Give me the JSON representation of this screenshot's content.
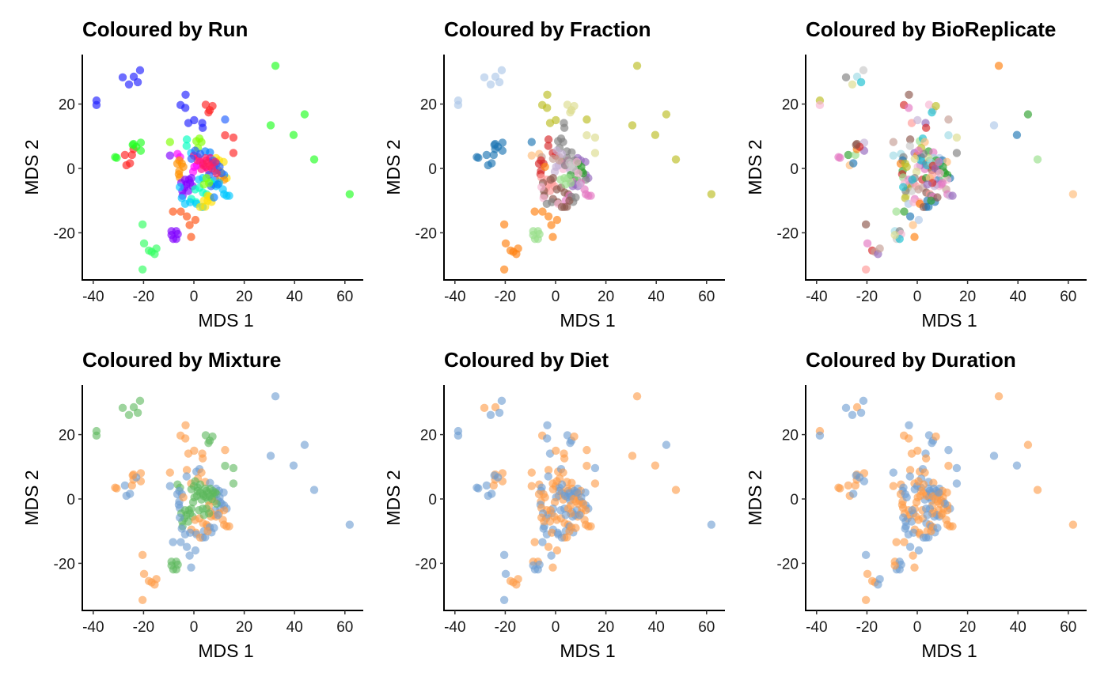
{
  "chart_data": [
    {
      "type": "scatter",
      "title": "Coloured by Run",
      "xlabel": "MDS 1",
      "ylabel": "MDS 2",
      "color_by": "run",
      "xlim": [
        -44,
        67
      ],
      "ylim": [
        -34.6,
        35.4
      ],
      "xticks": [
        "-40",
        "-20",
        "0",
        "20",
        "40",
        "60"
      ],
      "yticks": [
        "-20",
        "0",
        "20"
      ],
      "legend": "none",
      "grid": false
    },
    {
      "type": "scatter",
      "title": "Coloured by Fraction",
      "xlabel": "MDS 1",
      "ylabel": "MDS 2",
      "color_by": "fraction",
      "xlim": [
        -44,
        67
      ],
      "ylim": [
        -34.6,
        35.4
      ],
      "xticks": [
        "-40",
        "-20",
        "0",
        "20",
        "40",
        "60"
      ],
      "yticks": [
        "-20",
        "0",
        "20"
      ],
      "legend": "none",
      "grid": false
    },
    {
      "type": "scatter",
      "title": "Coloured by BioReplicate",
      "xlabel": "MDS 1",
      "ylabel": "MDS 2",
      "color_by": "bio",
      "xlim": [
        -44,
        67
      ],
      "ylim": [
        -34.6,
        35.4
      ],
      "xticks": [
        "-40",
        "-20",
        "0",
        "20",
        "40",
        "60"
      ],
      "yticks": [
        "-20",
        "0",
        "20"
      ],
      "legend": "none",
      "grid": false
    },
    {
      "type": "scatter",
      "title": "Coloured by Mixture",
      "xlabel": "MDS 1",
      "ylabel": "MDS 2",
      "color_by": "mix",
      "xlim": [
        -44,
        67
      ],
      "ylim": [
        -34.6,
        35.4
      ],
      "xticks": [
        "-40",
        "-20",
        "0",
        "20",
        "40",
        "60"
      ],
      "yticks": [
        "-20",
        "0",
        "20"
      ],
      "legend": "none",
      "grid": false
    },
    {
      "type": "scatter",
      "title": "Coloured by Diet",
      "xlabel": "MDS 1",
      "ylabel": "MDS 2",
      "color_by": "diet",
      "xlim": [
        -44,
        67
      ],
      "ylim": [
        -34.6,
        35.4
      ],
      "xticks": [
        "-40",
        "-20",
        "0",
        "20",
        "40",
        "60"
      ],
      "yticks": [
        "-20",
        "0",
        "20"
      ],
      "legend": "none",
      "grid": false
    },
    {
      "type": "scatter",
      "title": "Coloured by Duration",
      "xlabel": "MDS 1",
      "ylabel": "MDS 2",
      "color_by": "dur",
      "xlim": [
        -44,
        67
      ],
      "ylim": [
        -34.6,
        35.4
      ],
      "xticks": [
        "-40",
        "-20",
        "0",
        "20",
        "40",
        "60"
      ],
      "yticks": [
        "-20",
        "0",
        "20"
      ],
      "legend": "none",
      "grid": false
    }
  ],
  "palettes": {
    "run": [
      "#2020ff",
      "#ff2020",
      "#20ff20",
      "#ff0080",
      "#ff00ff",
      "#8000ff",
      "#0080ff",
      "#00c8ff",
      "#00ffc0",
      "#80ff00",
      "#ffe000",
      "#ff9000",
      "#ff5010",
      "#2060ff",
      "#ff2060",
      "#30ff60"
    ],
    "fraction": [
      "#aec7e8",
      "#1f77b4",
      "#bcbd22",
      "#dbdb8d",
      "#ff7f0e",
      "#ffbb78",
      "#2ca02c",
      "#98df8a",
      "#d62728",
      "#ff9896",
      "#9467bd",
      "#c5b0d5",
      "#8c564b",
      "#c49c94",
      "#e377c2",
      "#f7b6d2",
      "#7f7f7f",
      "#c7c7c7"
    ],
    "bio": [
      "#1f77b4",
      "#aec7e8",
      "#ff7f0e",
      "#ffbb78",
      "#2ca02c",
      "#98df8a",
      "#d62728",
      "#ff9896",
      "#9467bd",
      "#c5b0d5",
      "#8c564b",
      "#c49c94",
      "#e377c2",
      "#f7b6d2",
      "#7f7f7f",
      "#c7c7c7",
      "#bcbd22",
      "#dbdb8d",
      "#17becf",
      "#9edae5"
    ],
    "mix": [
      "#6a9bd1",
      "#fd9a45",
      "#5cb85c"
    ],
    "diet": [
      "#6a9bd1",
      "#fd9a45"
    ],
    "dur": [
      "#6a9bd1",
      "#fd9a45"
    ]
  },
  "points": [
    [
      -38.7,
      21.1,
      0,
      0,
      16,
      2,
      0,
      1
    ],
    [
      -38.7,
      19.7,
      0,
      0,
      13,
      2,
      0,
      0
    ],
    [
      -28.3,
      28.3,
      0,
      0,
      14,
      2,
      1,
      0
    ],
    [
      -25.8,
      26.1,
      0,
      0,
      17,
      2,
      0,
      0
    ],
    [
      -23.9,
      28.5,
      0,
      0,
      19,
      2,
      1,
      1
    ],
    [
      -22.3,
      26.8,
      0,
      0,
      18,
      2,
      0,
      0
    ],
    [
      -21.4,
      30.5,
      0,
      0,
      15,
      2,
      0,
      0
    ],
    [
      32.4,
      31.9,
      2,
      2,
      2,
      0,
      1,
      1
    ],
    [
      44.0,
      16.8,
      2,
      2,
      4,
      0,
      0,
      1
    ],
    [
      30.5,
      13.4,
      2,
      2,
      1,
      0,
      1,
      0
    ],
    [
      39.6,
      10.4,
      2,
      2,
      0,
      0,
      1,
      0
    ],
    [
      47.8,
      2.8,
      2,
      2,
      5,
      0,
      1,
      1
    ],
    [
      61.9,
      -8.0,
      2,
      2,
      3,
      0,
      0,
      1
    ],
    [
      -20.4,
      -17.4,
      15,
      4,
      10,
      1,
      0,
      0
    ],
    [
      -19.8,
      -23.3,
      15,
      4,
      12,
      1,
      0,
      1
    ],
    [
      -17.9,
      -25.5,
      15,
      4,
      6,
      1,
      1,
      1
    ],
    [
      -16.8,
      -25.9,
      15,
      4,
      11,
      1,
      1,
      1
    ],
    [
      -15.6,
      -26.6,
      15,
      4,
      8,
      1,
      1,
      0
    ],
    [
      -14.9,
      -24.9,
      15,
      4,
      11,
      1,
      1,
      0
    ],
    [
      -20.4,
      -31.4,
      15,
      4,
      7,
      1,
      0,
      1
    ],
    [
      -8.9,
      -19.5,
      5,
      7,
      19,
      2,
      1,
      1
    ],
    [
      -8.2,
      -21.9,
      5,
      7,
      15,
      2,
      0,
      0
    ],
    [
      -7.0,
      -19.5,
      5,
      7,
      14,
      2,
      1,
      0
    ],
    [
      -6.4,
      -20.4,
      5,
      7,
      13,
      2,
      0,
      0
    ],
    [
      -7.0,
      -21.9,
      5,
      7,
      18,
      2,
      0,
      0
    ],
    [
      -8.9,
      -20.7,
      5,
      7,
      17,
      2,
      0,
      1
    ],
    [
      -8.3,
      -13.4,
      12,
      4,
      5,
      0,
      1,
      1
    ],
    [
      -5.2,
      -13.4,
      12,
      4,
      4,
      0,
      0,
      1
    ],
    [
      -2.8,
      -14.9,
      12,
      4,
      0,
      0,
      1,
      0
    ],
    [
      0.6,
      -16.0,
      12,
      4,
      1,
      0,
      1,
      0
    ],
    [
      -1.7,
      -17.6,
      12,
      4,
      3,
      0,
      0,
      1
    ],
    [
      -1.1,
      -21.3,
      12,
      4,
      2,
      0,
      1,
      1
    ],
    [
      -27.4,
      4.2,
      1,
      1,
      4,
      0,
      0,
      1
    ],
    [
      -24.6,
      4.2,
      1,
      1,
      5,
      1,
      1,
      1
    ],
    [
      -26.8,
      1.0,
      1,
      1,
      3,
      0,
      0,
      1
    ],
    [
      -25.4,
      1.6,
      1,
      1,
      0,
      0,
      0,
      0
    ],
    [
      -24.0,
      6.0,
      1,
      1,
      2,
      1,
      1,
      1
    ],
    [
      -30.7,
      3.3,
      2,
      1,
      12,
      1,
      0,
      1
    ],
    [
      -31.3,
      3.5,
      2,
      1,
      12,
      1,
      0,
      1
    ],
    [
      -24.0,
      7.6,
      2,
      1,
      10,
      1,
      1,
      1
    ],
    [
      -21.1,
      8.0,
      2,
      1,
      9,
      1,
      1,
      1
    ],
    [
      -21.1,
      5.5,
      2,
      1,
      8,
      1,
      1,
      0
    ],
    [
      -22.9,
      6.7,
      2,
      1,
      6,
      0,
      0,
      0
    ],
    [
      -24.3,
      7.3,
      2,
      1,
      10,
      1,
      0,
      0
    ],
    [
      4.7,
      19.8,
      1,
      3,
      13,
      2,
      0,
      0
    ],
    [
      6.3,
      18.1,
      1,
      3,
      15,
      2,
      0,
      0
    ],
    [
      7.4,
      19.4,
      1,
      3,
      16,
      2,
      1,
      1
    ],
    [
      5.8,
      17.4,
      1,
      3,
      18,
      2,
      0,
      0
    ],
    [
      12.4,
      15.2,
      13,
      2,
      11,
      1,
      1,
      0
    ],
    [
      12.4,
      10.3,
      1,
      3,
      19,
      2,
      1,
      1
    ],
    [
      15.7,
      9.6,
      1,
      3,
      17,
      2,
      0,
      0
    ],
    [
      15.7,
      4.8,
      1,
      3,
      14,
      2,
      1,
      0
    ],
    [
      -3.3,
      22.9,
      0,
      2,
      10,
      1,
      0,
      0
    ],
    [
      -5.3,
      19.7,
      0,
      2,
      6,
      1,
      1,
      1
    ],
    [
      -3.4,
      18.8,
      0,
      2,
      12,
      1,
      0,
      1
    ],
    [
      -2.2,
      14.1,
      0,
      2,
      7,
      1,
      0,
      1
    ],
    [
      0.1,
      15.0,
      0,
      2,
      9,
      1,
      1,
      1
    ],
    [
      3.3,
      14.1,
      0,
      16,
      8,
      1,
      1,
      0
    ],
    [
      3.5,
      12.6,
      0,
      16,
      6,
      1,
      1,
      1
    ],
    [
      -9.5,
      8.2,
      9,
      1,
      11,
      1,
      1,
      0
    ],
    [
      -2.8,
      9.0,
      8,
      8,
      10,
      1,
      1,
      1
    ],
    [
      -2.9,
      7.0,
      8,
      8,
      15,
      0,
      0,
      0
    ],
    [
      -6.5,
      4.5,
      4,
      5,
      19,
      2,
      1,
      1
    ],
    [
      -9.5,
      4.0,
      5,
      5,
      19,
      0,
      1,
      1
    ],
    [
      -5.5,
      3.5,
      4,
      13,
      14,
      2,
      0,
      0
    ],
    [
      1.0,
      8.5,
      9,
      16,
      5,
      0,
      1,
      1
    ],
    [
      2.2,
      9.3,
      9,
      16,
      18,
      0,
      0,
      0
    ],
    [
      3.0,
      8.2,
      9,
      16,
      3,
      1,
      1,
      1
    ],
    [
      1.6,
      6.3,
      9,
      16,
      16,
      1,
      1,
      0
    ],
    [
      4.5,
      5.3,
      6,
      16,
      4,
      1,
      1,
      0
    ],
    [
      6.4,
      5.0,
      6,
      16,
      12,
      0,
      1,
      1
    ],
    [
      -1.1,
      4.8,
      7,
      8,
      8,
      1,
      1,
      1
    ],
    [
      0.0,
      4.0,
      3,
      8,
      2,
      2,
      1,
      0
    ],
    [
      1.5,
      3.5,
      3,
      13,
      0,
      2,
      0,
      0
    ],
    [
      2.5,
      2.0,
      4,
      13,
      1,
      2,
      1,
      1
    ],
    [
      3.5,
      1.5,
      3,
      14,
      6,
      2,
      0,
      1
    ],
    [
      5.0,
      2.5,
      3,
      14,
      18,
      2,
      0,
      0
    ],
    [
      6.5,
      3.2,
      3,
      17,
      19,
      2,
      1,
      0
    ],
    [
      7.5,
      1.8,
      3,
      17,
      16,
      2,
      0,
      1
    ],
    [
      8.0,
      0.8,
      3,
      17,
      2,
      2,
      1,
      0
    ],
    [
      4.8,
      0.5,
      3,
      15,
      3,
      2,
      0,
      0
    ],
    [
      3.0,
      -0.2,
      3,
      15,
      12,
      2,
      1,
      0
    ],
    [
      5.8,
      -0.5,
      3,
      11,
      10,
      2,
      0,
      0
    ],
    [
      1.2,
      1.0,
      4,
      11,
      8,
      2,
      1,
      1
    ],
    [
      0.2,
      0.5,
      4,
      11,
      13,
      2,
      0,
      1
    ],
    [
      -0.3,
      -1.0,
      4,
      11,
      17,
      2,
      1,
      1
    ],
    [
      8.8,
      3.2,
      10,
      10,
      1,
      0,
      0,
      0
    ],
    [
      10.0,
      2.5,
      10,
      10,
      0,
      0,
      1,
      1
    ],
    [
      11.8,
      2.0,
      10,
      10,
      3,
      0,
      0,
      1
    ],
    [
      13.0,
      -3.0,
      10,
      10,
      0,
      0,
      0,
      0
    ],
    [
      12.0,
      -2.0,
      6,
      10,
      4,
      0,
      0,
      1
    ],
    [
      10.5,
      -1.0,
      10,
      6,
      4,
      0,
      0,
      0
    ],
    [
      8.5,
      -3.5,
      6,
      6,
      0,
      0,
      0,
      1
    ],
    [
      -5.8,
      2.5,
      11,
      8,
      0,
      0,
      0,
      0
    ],
    [
      -6.6,
      1.5,
      11,
      8,
      2,
      0,
      1,
      1
    ],
    [
      -4.8,
      1.5,
      11,
      8,
      16,
      0,
      1,
      0
    ],
    [
      -5.8,
      -0.8,
      11,
      8,
      4,
      0,
      1,
      1
    ],
    [
      -6.0,
      -1.8,
      11,
      8,
      6,
      0,
      0,
      1
    ],
    [
      -5.6,
      -2.8,
      11,
      9,
      5,
      0,
      1,
      1
    ],
    [
      -4.2,
      0.5,
      11,
      4,
      16,
      1,
      1,
      0
    ],
    [
      9.5,
      -0.5,
      11,
      17,
      1,
      0,
      1,
      1
    ],
    [
      10.5,
      -3.0,
      11,
      17,
      5,
      0,
      1,
      1
    ],
    [
      12.0,
      -3.5,
      11,
      16,
      13,
      1,
      1,
      1
    ],
    [
      -3.0,
      -5.0,
      5,
      9,
      10,
      2,
      1,
      1
    ],
    [
      -1.5,
      -4.5,
      5,
      9,
      9,
      2,
      0,
      0
    ],
    [
      -0.5,
      -5.5,
      5,
      9,
      7,
      2,
      1,
      1
    ],
    [
      -3.8,
      -6.0,
      5,
      9,
      16,
      2,
      0,
      1
    ],
    [
      -2.2,
      -7.0,
      5,
      9,
      15,
      2,
      1,
      0
    ],
    [
      -1.0,
      -3.0,
      5,
      12,
      14,
      2,
      0,
      1
    ],
    [
      -3.5,
      -3.5,
      5,
      9,
      12,
      2,
      1,
      1
    ],
    [
      -2.0,
      -3.5,
      5,
      12,
      18,
      2,
      1,
      0
    ],
    [
      -4.5,
      -8.5,
      5,
      12,
      17,
      2,
      0,
      0
    ],
    [
      -4.6,
      -7.0,
      5,
      12,
      14,
      2,
      1,
      0
    ],
    [
      -5.0,
      -4.5,
      5,
      12,
      13,
      2,
      0,
      1
    ],
    [
      0.5,
      -6.5,
      8,
      12,
      11,
      1,
      1,
      1
    ],
    [
      2.2,
      -6.0,
      8,
      12,
      11,
      1,
      1,
      1
    ],
    [
      3.6,
      -7.5,
      8,
      12,
      10,
      1,
      1,
      0
    ],
    [
      5.0,
      -8.0,
      8,
      12,
      7,
      1,
      1,
      1
    ],
    [
      -1.0,
      -9.5,
      8,
      12,
      12,
      1,
      0,
      1
    ],
    [
      0.8,
      -10.5,
      8,
      12,
      7,
      1,
      0,
      1
    ],
    [
      3.5,
      -12.0,
      7,
      12,
      0,
      0,
      1,
      0
    ],
    [
      6.5,
      -4.0,
      8,
      14,
      9,
      1,
      0,
      1
    ],
    [
      7.8,
      -5.0,
      8,
      10,
      8,
      1,
      0,
      0
    ],
    [
      8.8,
      -5.5,
      7,
      10,
      13,
      1,
      1,
      0
    ],
    [
      10.0,
      -4.5,
      7,
      14,
      12,
      1,
      1,
      1
    ],
    [
      11.5,
      -6.5,
      7,
      14,
      11,
      1,
      1,
      1
    ],
    [
      12.0,
      -8.0,
      7,
      14,
      12,
      1,
      1,
      1
    ],
    [
      13.0,
      -8.5,
      7,
      14,
      9,
      1,
      1,
      1
    ],
    [
      14.0,
      -8.5,
      7,
      14,
      8,
      1,
      1,
      1
    ],
    [
      -5.6,
      -5.8,
      7,
      15,
      18,
      0,
      1,
      0
    ],
    [
      -4.8,
      -9.2,
      7,
      15,
      16,
      0,
      0,
      0
    ],
    [
      -3.5,
      -11.0,
      7,
      16,
      1,
      0,
      0,
      0
    ],
    [
      -1.5,
      -10.5,
      7,
      16,
      13,
      0,
      1,
      0
    ],
    [
      1.0,
      -11.0,
      7,
      15,
      2,
      0,
      0,
      1
    ],
    [
      4.0,
      -10.0,
      10,
      14,
      0,
      0,
      0,
      1
    ],
    [
      5.5,
      -8.5,
      10,
      14,
      14,
      1,
      0,
      0
    ],
    [
      6.3,
      -8.8,
      10,
      16,
      12,
      0,
      1,
      1
    ],
    [
      7.0,
      -10.4,
      10,
      16,
      0,
      0,
      0,
      0
    ],
    [
      2.5,
      -12.0,
      10,
      12,
      10,
      1,
      0,
      0
    ],
    [
      4.5,
      -11.9,
      10,
      12,
      0,
      0,
      1,
      0
    ],
    [
      5.5,
      -10.0,
      10,
      12,
      4,
      1,
      1,
      1
    ],
    [
      8.0,
      -9.0,
      6,
      16,
      10,
      0,
      1,
      0
    ],
    [
      9.5,
      -5.0,
      6,
      11,
      12,
      0,
      0,
      1
    ],
    [
      7.5,
      2.5,
      13,
      16,
      4,
      2,
      0,
      0
    ],
    [
      8.2,
      -0.8,
      13,
      16,
      10,
      1,
      1,
      1
    ],
    [
      9.0,
      1.5,
      13,
      6,
      18,
      2,
      1,
      1
    ],
    [
      10.2,
      0.5,
      13,
      6,
      4,
      0,
      0,
      1
    ],
    [
      11.0,
      -1.5,
      13,
      6,
      4,
      0,
      1,
      0
    ],
    [
      6.0,
      -2.0,
      13,
      6,
      7,
      1,
      1,
      1
    ],
    [
      6.8,
      -5.5,
      13,
      10,
      9,
      1,
      0,
      0
    ],
    [
      3.8,
      1.0,
      14,
      16,
      18,
      2,
      0,
      1
    ],
    [
      4.5,
      3.2,
      14,
      16,
      17,
      2,
      1,
      0
    ],
    [
      5.5,
      1.8,
      14,
      17,
      19,
      2,
      0,
      0
    ],
    [
      6.2,
      0.8,
      14,
      17,
      6,
      2,
      0,
      1
    ],
    [
      7.2,
      0.0,
      14,
      17,
      8,
      2,
      1,
      1
    ],
    [
      8.5,
      2.0,
      14,
      15,
      12,
      2,
      0,
      0
    ],
    [
      9.0,
      -1.5,
      14,
      15,
      13,
      2,
      1,
      1
    ],
    [
      2.0,
      -3.5,
      7,
      7,
      6,
      2,
      0,
      1
    ],
    [
      3.5,
      -3.0,
      7,
      7,
      4,
      2,
      0,
      0
    ],
    [
      5.0,
      -3.0,
      9,
      7,
      3,
      2,
      1,
      0
    ],
    [
      6.0,
      -4.5,
      9,
      7,
      6,
      2,
      1,
      1
    ],
    [
      4.0,
      -5.0,
      9,
      7,
      8,
      2,
      0,
      0
    ],
    [
      1.5,
      2.5,
      14,
      13,
      18,
      2,
      0,
      1
    ],
    [
      -1.0,
      3.0,
      13,
      13,
      17,
      2,
      1,
      0
    ],
    [
      2.5,
      4.5,
      13,
      11,
      14,
      2,
      0,
      1
    ],
    [
      0.5,
      5.5,
      13,
      11,
      12,
      2,
      1,
      1
    ]
  ]
}
